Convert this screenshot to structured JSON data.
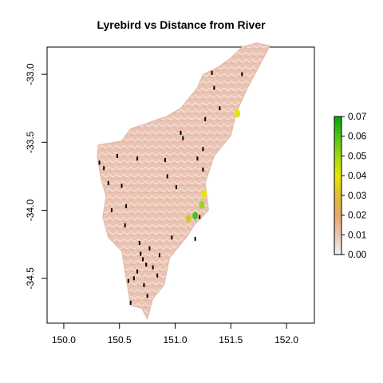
{
  "chart_data": {
    "type": "heatmap",
    "title": "Lyrebird vs Distance from River",
    "xlabel": "",
    "ylabel": "",
    "xlim": [
      149.85,
      152.25
    ],
    "ylim": [
      -34.83,
      -32.8
    ],
    "x_ticks": [
      150.0,
      150.5,
      151.0,
      151.5,
      152.0
    ],
    "x_tick_labels": [
      "150.0",
      "150.5",
      "151.0",
      "151.5",
      "152.0"
    ],
    "y_ticks": [
      -33.0,
      -33.5,
      -34.0,
      -34.5
    ],
    "y_tick_labels": [
      "-33.0",
      "-33.5",
      "-34.0",
      "-34.5"
    ],
    "legend": {
      "placement": "right",
      "min": 0.0,
      "max": 0.07,
      "ticks": [
        0.0,
        0.01,
        0.02,
        0.03,
        0.04,
        0.05,
        0.06,
        0.07
      ],
      "tick_labels": [
        "0.00",
        "0.01",
        "0.02",
        "0.03",
        "0.04",
        "0.05",
        "0.06",
        "0.07"
      ],
      "colors": [
        "#f2f2f2",
        "#eac4b4",
        "#e6a86a",
        "#dcc033",
        "#e6e600",
        "#9dd617",
        "#4ec21f",
        "#00a600"
      ]
    },
    "region_outline": [
      [
        150.31,
        -33.52
      ],
      [
        150.52,
        -33.49
      ],
      [
        150.6,
        -33.4
      ],
      [
        150.75,
        -33.36
      ],
      [
        150.92,
        -33.31
      ],
      [
        151.05,
        -33.25
      ],
      [
        151.2,
        -33.1
      ],
      [
        151.25,
        -33.0
      ],
      [
        151.38,
        -32.95
      ],
      [
        151.5,
        -32.88
      ],
      [
        151.6,
        -32.8
      ],
      [
        151.73,
        -32.77
      ],
      [
        151.85,
        -32.79
      ],
      [
        151.78,
        -32.9
      ],
      [
        151.65,
        -33.1
      ],
      [
        151.55,
        -33.28
      ],
      [
        151.5,
        -33.45
      ],
      [
        151.35,
        -33.6
      ],
      [
        151.27,
        -33.8
      ],
      [
        151.3,
        -34.0
      ],
      [
        151.18,
        -34.1
      ],
      [
        151.1,
        -34.2
      ],
      [
        150.95,
        -34.35
      ],
      [
        150.9,
        -34.55
      ],
      [
        150.8,
        -34.65
      ],
      [
        150.75,
        -34.8
      ],
      [
        150.7,
        -34.72
      ],
      [
        150.6,
        -34.7
      ],
      [
        150.58,
        -34.6
      ],
      [
        150.55,
        -34.45
      ],
      [
        150.52,
        -34.3
      ],
      [
        150.4,
        -34.2
      ],
      [
        150.35,
        -34.05
      ],
      [
        150.38,
        -33.9
      ],
      [
        150.33,
        -33.75
      ],
      [
        150.3,
        -33.6
      ]
    ],
    "hotspots": [
      {
        "x": 151.56,
        "y": -33.29,
        "value": 0.04
      },
      {
        "x": 151.26,
        "y": -33.88,
        "value": 0.035
      },
      {
        "x": 151.24,
        "y": -33.96,
        "value": 0.045
      },
      {
        "x": 151.18,
        "y": -34.04,
        "value": 0.065
      },
      {
        "x": 151.12,
        "y": -34.06,
        "value": 0.03
      }
    ],
    "sightings": [
      {
        "x": 150.84,
        "y": -34.48
      },
      {
        "x": 150.69,
        "y": -34.32
      },
      {
        "x": 150.71,
        "y": -34.36
      },
      {
        "x": 150.74,
        "y": -34.4
      },
      {
        "x": 150.66,
        "y": -34.45
      },
      {
        "x": 150.72,
        "y": -34.55
      },
      {
        "x": 150.63,
        "y": -34.5
      },
      {
        "x": 150.77,
        "y": -34.28
      },
      {
        "x": 150.8,
        "y": -34.42
      },
      {
        "x": 150.68,
        "y": -34.24
      },
      {
        "x": 150.58,
        "y": -34.52
      },
      {
        "x": 150.75,
        "y": -34.63
      },
      {
        "x": 150.86,
        "y": -34.33
      },
      {
        "x": 150.55,
        "y": -34.11
      },
      {
        "x": 150.52,
        "y": -33.82
      },
      {
        "x": 150.56,
        "y": -33.97
      },
      {
        "x": 150.32,
        "y": -33.65
      },
      {
        "x": 150.36,
        "y": -33.69
      },
      {
        "x": 150.66,
        "y": -33.62
      },
      {
        "x": 150.91,
        "y": -33.63
      },
      {
        "x": 150.93,
        "y": -33.75
      },
      {
        "x": 151.01,
        "y": -33.83
      },
      {
        "x": 151.05,
        "y": -33.43
      },
      {
        "x": 151.07,
        "y": -33.47
      },
      {
        "x": 151.2,
        "y": -33.62
      },
      {
        "x": 151.25,
        "y": -33.55
      },
      {
        "x": 151.25,
        "y": -33.7
      },
      {
        "x": 151.27,
        "y": -33.33
      },
      {
        "x": 151.4,
        "y": -33.25
      },
      {
        "x": 151.35,
        "y": -33.1
      },
      {
        "x": 151.33,
        "y": -32.99
      },
      {
        "x": 151.6,
        "y": -33.0
      },
      {
        "x": 151.18,
        "y": -34.21
      },
      {
        "x": 151.22,
        "y": -34.05
      },
      {
        "x": 150.97,
        "y": -34.2
      },
      {
        "x": 150.6,
        "y": -34.68
      },
      {
        "x": 150.43,
        "y": -34.0
      },
      {
        "x": 150.48,
        "y": -33.6
      },
      {
        "x": 150.4,
        "y": -33.8
      }
    ]
  }
}
